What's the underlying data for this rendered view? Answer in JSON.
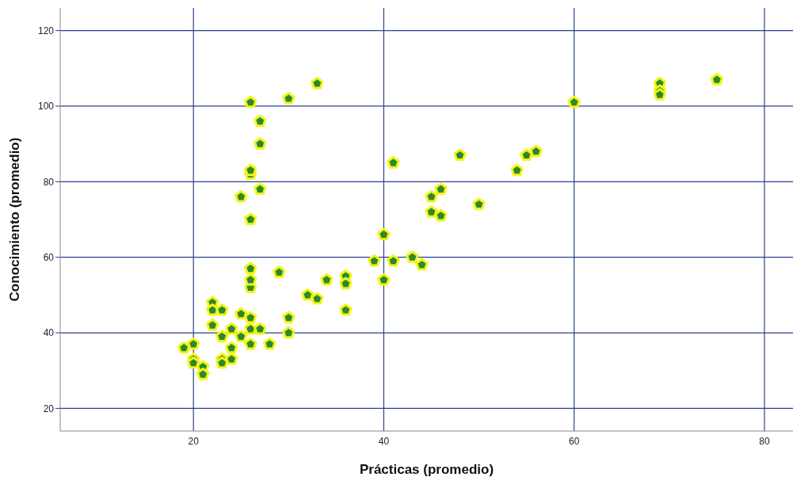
{
  "chart_data": {
    "type": "scatter",
    "xlabel": "Prácticas (promedio)",
    "ylabel": "Conocimiento (promedio)",
    "xlim": [
      6,
      83
    ],
    "ylim": [
      14,
      126
    ],
    "xticks": [
      20,
      40,
      60,
      80
    ],
    "yticks": [
      20,
      40,
      60,
      80,
      100,
      120
    ],
    "grid": true,
    "series": [
      {
        "color": "#2a8a2a",
        "x": [
          19,
          20,
          20,
          20,
          21,
          21,
          22,
          22,
          22,
          23,
          23,
          23,
          23,
          24,
          24,
          24,
          25,
          25,
          25,
          26,
          26,
          26,
          26,
          26,
          26,
          26,
          26,
          26,
          26,
          27,
          27,
          27,
          27,
          28,
          29,
          30,
          30,
          30,
          32,
          33,
          33,
          34,
          36,
          36,
          36,
          39,
          40,
          40,
          41,
          41,
          43,
          44,
          45,
          45,
          46,
          46,
          48,
          50,
          54,
          55,
          56,
          60,
          69,
          69,
          69,
          75
        ],
        "values": [
          36,
          37,
          33,
          32,
          31,
          29,
          48,
          46,
          42,
          46,
          39,
          33,
          32,
          41,
          36,
          33,
          45,
          39,
          76,
          44,
          41,
          37,
          52,
          54,
          57,
          70,
          82,
          83,
          101,
          41,
          78,
          90,
          96,
          37,
          56,
          44,
          40,
          102,
          50,
          49,
          106,
          54,
          55,
          53,
          46,
          59,
          66,
          54,
          59,
          85,
          60,
          58,
          76,
          72,
          78,
          71,
          87,
          74,
          83,
          87,
          88,
          101,
          106,
          104,
          103,
          107
        ]
      }
    ]
  }
}
